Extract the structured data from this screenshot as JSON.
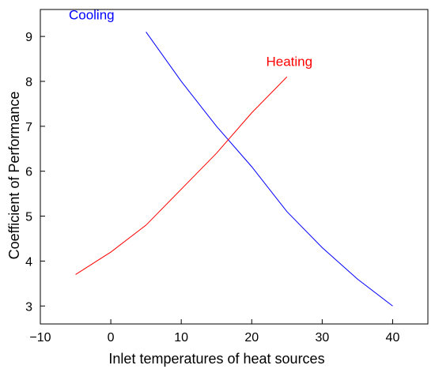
{
  "chart_data": {
    "type": "line",
    "title": "",
    "xlabel": "Inlet temperatures of heat sources",
    "ylabel": "Coefficient of Performance",
    "xlim": [
      -10,
      45
    ],
    "ylim": [
      2.6,
      9.6
    ],
    "x_ticks": [
      -10,
      0,
      10,
      20,
      30,
      40
    ],
    "x_tick_labels": [
      "−10",
      "0",
      "10",
      "20",
      "30",
      "40"
    ],
    "y_ticks": [
      3,
      4,
      5,
      6,
      7,
      8,
      9
    ],
    "y_tick_labels": [
      "3",
      "4",
      "5",
      "6",
      "7",
      "8",
      "9"
    ],
    "grid": false,
    "legend": "none",
    "series": [
      {
        "name": "Cooling",
        "color": "#0000ff",
        "x": [
          5,
          10,
          15,
          20,
          25,
          30,
          35,
          40
        ],
        "y": [
          9.1,
          8.0,
          7.0,
          6.1,
          5.1,
          4.3,
          3.6,
          3.0
        ]
      },
      {
        "name": "Heating",
        "color": "#ff0000",
        "x": [
          -5,
          0,
          5,
          10,
          15,
          20,
          25
        ],
        "y": [
          3.7,
          4.2,
          4.8,
          5.6,
          6.4,
          7.3,
          8.1
        ]
      }
    ]
  }
}
